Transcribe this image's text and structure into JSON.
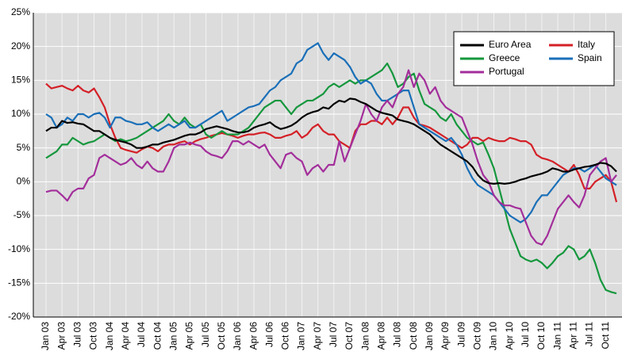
{
  "chart_data": {
    "type": "line",
    "categories": [
      "Jan 03",
      null,
      null,
      "Apr 03",
      null,
      null,
      "Jul 03",
      null,
      null,
      "Oct 03",
      null,
      null,
      "Jan 04",
      null,
      null,
      "Apr 04",
      null,
      null,
      "Jul 04",
      null,
      null,
      "Oct 04",
      null,
      null,
      "Jan 05",
      null,
      null,
      "Apr 05",
      null,
      null,
      "Jul 05",
      null,
      null,
      "Oct 05",
      null,
      null,
      "Jan 06",
      null,
      null,
      "Apr 06",
      null,
      null,
      "Jul 06",
      null,
      null,
      "Oct 06",
      null,
      null,
      "Jan 07",
      null,
      null,
      "Apr 07",
      null,
      null,
      "Jul 07",
      null,
      null,
      "Oct 07",
      null,
      null,
      "Jan 08",
      null,
      null,
      "Apr 08",
      null,
      null,
      "Jul 08",
      null,
      null,
      "Oct 08",
      null,
      null,
      "Jan 09",
      null,
      null,
      "Apr 09",
      null,
      null,
      "Jul 09",
      null,
      null,
      "Oct 09",
      null,
      null,
      "Jan 10",
      null,
      null,
      "Apr 10",
      null,
      null,
      "Jul 10",
      null,
      null,
      "Oct 10",
      null,
      null,
      "Jan 11",
      null,
      null,
      "Apr 11",
      null,
      null,
      "Jul 11",
      null,
      null,
      "Oct 11",
      null,
      null
    ],
    "series": [
      {
        "name": "Euro Area",
        "color": "#000000",
        "values": [
          7.5,
          8,
          8,
          9,
          8.7,
          8.8,
          8.6,
          8.5,
          8,
          7.5,
          7.5,
          7,
          6.5,
          6.2,
          6,
          5.8,
          5.5,
          5,
          5,
          5.2,
          5.5,
          5.5,
          5.8,
          6,
          6.2,
          6.5,
          6.8,
          7,
          7,
          7.3,
          7.8,
          8,
          8.2,
          8,
          7.8,
          7.5,
          7.3,
          7.3,
          7.5,
          8,
          8.3,
          8.5,
          8.8,
          8.2,
          7.8,
          8,
          8.3,
          8.8,
          9.5,
          10,
          10.3,
          10.5,
          11,
          10.8,
          11.5,
          12,
          11.8,
          12.3,
          12.2,
          11.8,
          11.5,
          11,
          10.5,
          10.2,
          10,
          9.8,
          9.2,
          9,
          8.8,
          8.5,
          8,
          7.5,
          7,
          6.2,
          5.5,
          5,
          4.5,
          4,
          3.5,
          3,
          2.2,
          1,
          0.2,
          -0.2,
          -0.3,
          -0.2,
          -0.3,
          -0.2,
          0,
          0.3,
          0.5,
          0.8,
          1,
          1.2,
          1.5,
          2,
          1.8,
          1.5,
          1.5,
          1.8,
          2,
          2.2,
          2.3,
          2.5,
          2.8,
          2.7,
          2.3,
          1.5
        ]
      },
      {
        "name": "Italy",
        "color": "#d42027",
        "values": [
          14.5,
          13.8,
          14,
          14.2,
          13.8,
          13.5,
          14.2,
          13.5,
          13.2,
          13.8,
          12.5,
          11,
          8.5,
          6.5,
          5,
          4.7,
          4.5,
          4.3,
          4.8,
          5.2,
          5,
          4.5,
          5.2,
          5.5,
          5.5,
          5.8,
          6,
          5.5,
          6,
          6.3,
          6.5,
          6.8,
          7,
          7.2,
          7,
          6.8,
          6.5,
          6.8,
          7,
          7,
          7.2,
          7.3,
          7,
          6.5,
          6.5,
          6.8,
          7,
          7.5,
          6.5,
          7,
          8,
          8.5,
          7.5,
          7,
          7,
          6,
          5.5,
          5,
          7.5,
          8.5,
          8.5,
          9,
          9,
          8.5,
          9.5,
          8.5,
          9.5,
          11,
          11,
          9.5,
          8.5,
          8.3,
          8,
          7.5,
          7,
          6.5,
          6,
          5.5,
          5,
          5.5,
          6.5,
          6.5,
          6,
          6.5,
          6.2,
          6,
          6,
          6.5,
          6.3,
          6,
          6,
          5.5,
          4,
          3.5,
          3.3,
          3,
          2.5,
          2,
          1.5,
          2.5,
          1,
          -1,
          -1,
          0,
          0.5,
          1,
          0,
          -3
        ]
      },
      {
        "name": "Greece",
        "color": "#15973d",
        "values": [
          3.5,
          4,
          4.5,
          5.5,
          5.5,
          6.5,
          6,
          5.5,
          5.8,
          6,
          6.5,
          7,
          6.5,
          6,
          6.3,
          6,
          6.2,
          6.5,
          7,
          7.5,
          8,
          8.5,
          9,
          10,
          9,
          8.5,
          9.5,
          8.5,
          8,
          8.5,
          7,
          6.5,
          7,
          7.5,
          7,
          7,
          7,
          7.5,
          8,
          9,
          10,
          11,
          11.5,
          12,
          12,
          11,
          10,
          11,
          11.5,
          12,
          12,
          12.5,
          13,
          14,
          14.5,
          14,
          14.5,
          15,
          14.5,
          15,
          15,
          15.5,
          16,
          16.5,
          17.5,
          16,
          14,
          14.5,
          15.5,
          16,
          13.5,
          11.5,
          11,
          10.5,
          9.5,
          9,
          10,
          8.5,
          7.5,
          6.5,
          6,
          5.5,
          5.8,
          4,
          2,
          -1,
          -4,
          -7,
          -9,
          -11,
          -11.5,
          -11.8,
          -11.5,
          -12,
          -12.8,
          -12,
          -11,
          -10.5,
          -9.5,
          -10,
          -11.5,
          -11,
          -10,
          -12,
          -14.5,
          -16,
          -16.3,
          -16.5
        ]
      },
      {
        "name": "Spain",
        "color": "#1a6fb8",
        "values": [
          10,
          9.5,
          8,
          8.5,
          9.5,
          9,
          10,
          10,
          9.5,
          10,
          10.2,
          9.5,
          8,
          9.5,
          9.5,
          9,
          8.8,
          8.5,
          8.5,
          8.8,
          8,
          7.5,
          8,
          8.5,
          8,
          8.5,
          9,
          8,
          8,
          8.5,
          9,
          9.5,
          10,
          10.5,
          9,
          9.5,
          10,
          10.5,
          11,
          11.2,
          11.5,
          12.5,
          13.5,
          14,
          15,
          15.5,
          16,
          17.5,
          18,
          19.5,
          20,
          20.5,
          19,
          18,
          19,
          18.5,
          18,
          17,
          15.5,
          14.5,
          15,
          14.5,
          13,
          12,
          12,
          12.5,
          13,
          13.5,
          13.5,
          11,
          8.5,
          8,
          7.5,
          7,
          6.5,
          6,
          6.5,
          5.5,
          4,
          2,
          0.5,
          -0.5,
          -1,
          -1.5,
          -2,
          -3,
          -4,
          -5,
          -5.5,
          -6,
          -5.5,
          -4.5,
          -3,
          -2,
          -2,
          -1,
          0,
          1,
          1.5,
          2,
          2,
          1.5,
          2,
          2.5,
          1.5,
          0.5,
          0,
          -0.5
        ]
      },
      {
        "name": "Portugal",
        "color": "#a32e9b",
        "values": [
          -1.5,
          -1.3,
          -1.3,
          -2,
          -2.8,
          -1.5,
          -1,
          -1,
          0.5,
          1,
          3.5,
          4,
          3.5,
          3,
          2.5,
          2.8,
          3.5,
          2.5,
          2,
          3,
          2,
          1.5,
          1.5,
          3,
          5,
          5.5,
          5.5,
          5.8,
          5.5,
          5.3,
          4.5,
          4,
          3.8,
          3.5,
          4.5,
          6,
          6,
          5.5,
          6,
          5.5,
          5,
          5.5,
          4,
          3,
          2,
          4,
          4.3,
          3.5,
          3,
          1,
          2,
          2.5,
          1.5,
          2.5,
          2.5,
          6,
          3,
          5,
          7,
          9,
          11.5,
          10,
          9,
          11,
          12,
          11,
          13,
          14,
          16.5,
          14,
          16,
          15,
          13,
          14,
          12,
          11,
          10.5,
          10,
          9.5,
          7.5,
          5.5,
          3,
          1,
          0,
          -2,
          -3,
          -3.5,
          -3.5,
          -3.8,
          -4,
          -6,
          -8,
          -9,
          -9.3,
          -8,
          -6,
          -4,
          -3,
          -2,
          -3,
          -3.8,
          -2,
          1,
          2,
          3,
          3.5,
          0,
          1
        ]
      }
    ],
    "ylim": [
      -20,
      25
    ],
    "yticks": [
      {
        "value": -20,
        "label": "-20%"
      },
      {
        "value": -15,
        "label": "-15%"
      },
      {
        "value": -10,
        "label": "-10%"
      },
      {
        "value": -5,
        "label": "-5%"
      },
      {
        "value": 0,
        "label": "0%"
      },
      {
        "value": 5,
        "label": "5%"
      },
      {
        "value": 10,
        "label": "10%"
      },
      {
        "value": 15,
        "label": "15%"
      },
      {
        "value": 20,
        "label": "20%"
      },
      {
        "value": 25,
        "label": "25%"
      }
    ],
    "grid": true,
    "legend": "upper right"
  }
}
